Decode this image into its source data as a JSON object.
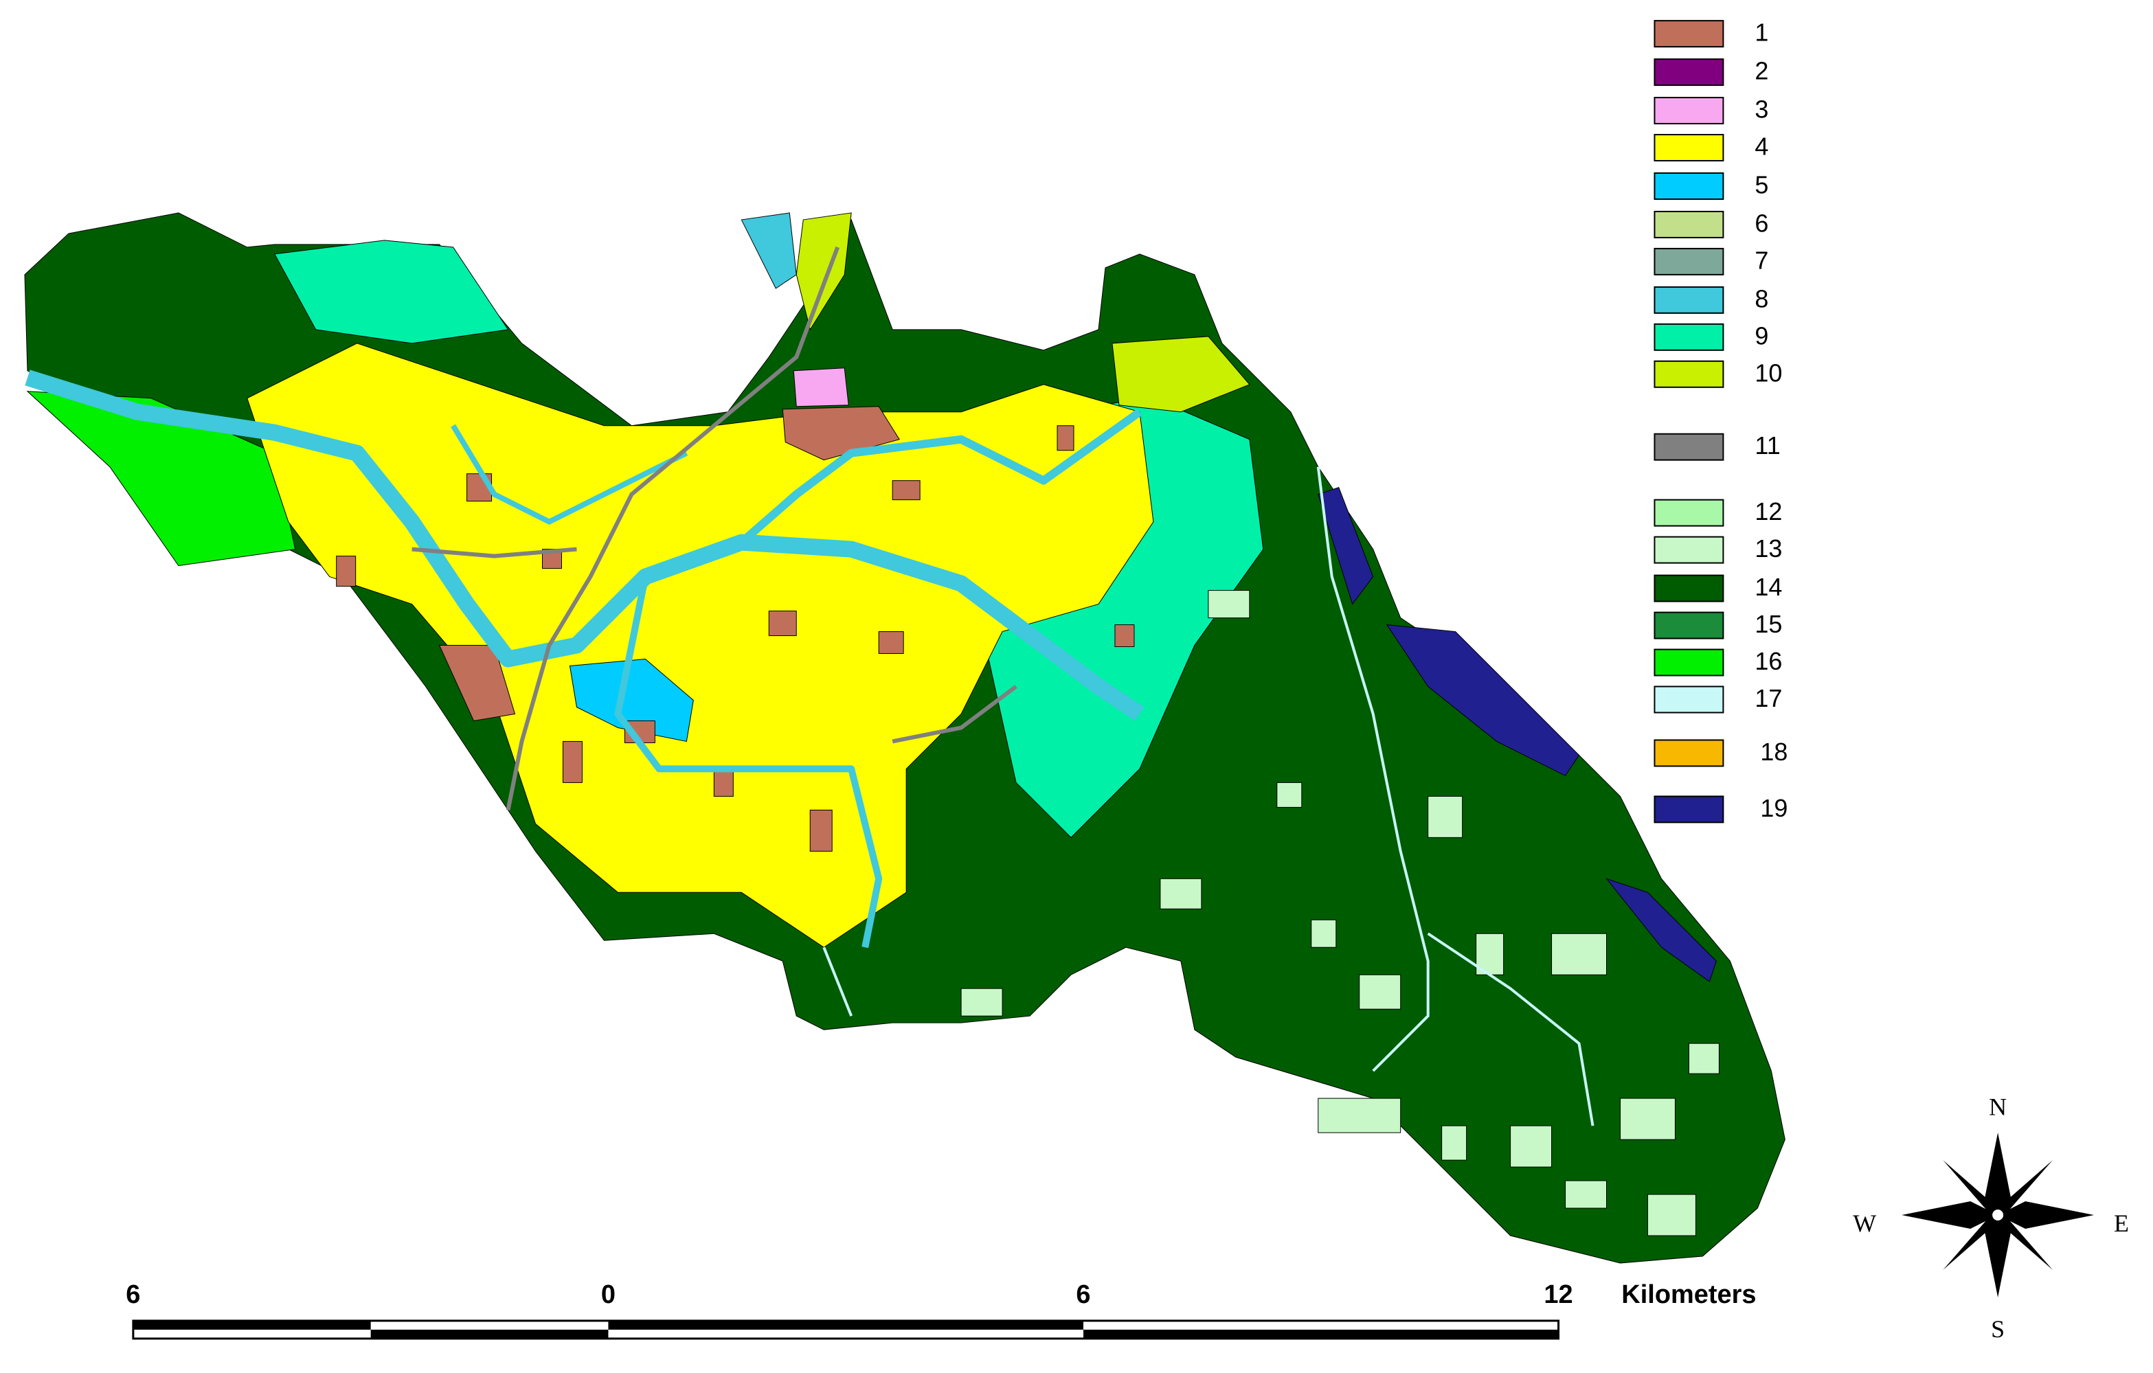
{
  "legend": [
    {
      "label": "1",
      "color": "#c0705a"
    },
    {
      "label": "2",
      "color": "#800080"
    },
    {
      "label": "3",
      "color": "#f7a8f0"
    },
    {
      "label": "4",
      "color": "#ffff00"
    },
    {
      "label": "5",
      "color": "#00ccff"
    },
    {
      "label": "6",
      "color": "#c2e08a"
    },
    {
      "label": "7",
      "color": "#7ea89a"
    },
    {
      "label": "8",
      "color": "#40c8dc"
    },
    {
      "label": "9",
      "color": "#00f0a8"
    },
    {
      "label": "10",
      "color": "#c8f000"
    },
    {
      "label": "11",
      "color": "#808080"
    },
    {
      "label": "12",
      "color": "#a8f8a8"
    },
    {
      "label": "13",
      "color": "#c8f8c8"
    },
    {
      "label": "14",
      "color": "#005c00"
    },
    {
      "label": "15",
      "color": "#1a8c3a"
    },
    {
      "label": "16",
      "color": "#00f000"
    },
    {
      "label": "17",
      "color": "#c8f8f8"
    },
    {
      "label": "18",
      "color": "#f8b800"
    },
    {
      "label": "19",
      "color": "#202090"
    }
  ],
  "scale_bar": {
    "labels": [
      "6",
      "0",
      "6",
      "12"
    ],
    "unit": "Kilometers"
  },
  "compass": {
    "north": "N",
    "east": "E",
    "south": "S",
    "west": "W"
  }
}
